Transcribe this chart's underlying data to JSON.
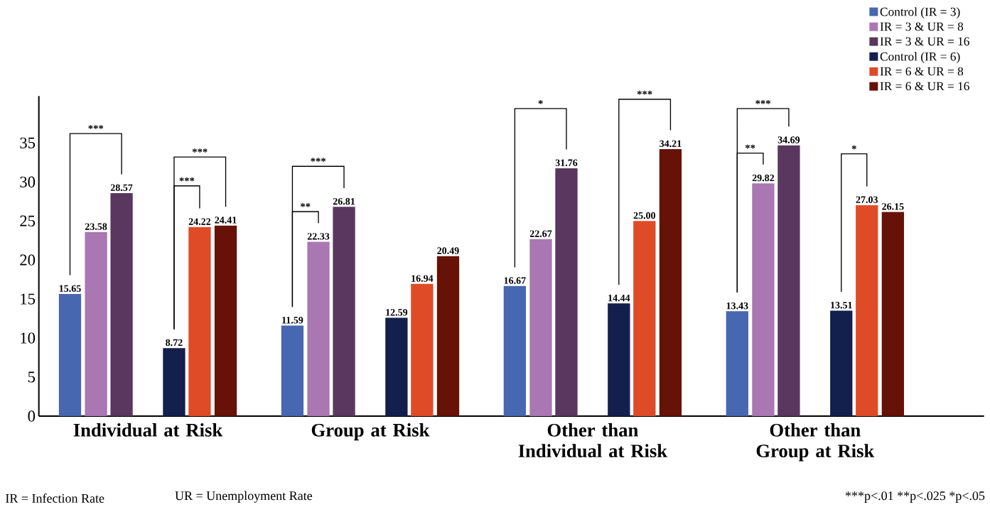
{
  "chart_data": {
    "type": "bar",
    "categories": [
      "Individual at Risk",
      "Group at Risk",
      "Other than Individual at Risk",
      "Other than Group at Risk"
    ],
    "series": [
      {
        "name": "Control (IR = 3)",
        "color": "#4767b0",
        "values": [
          15.65,
          11.59,
          16.67,
          13.43
        ],
        "value_labels": [
          "15.65",
          "11.59",
          "16.67",
          "13.43"
        ]
      },
      {
        "name": "IR = 3 & UR = 8",
        "color": "#a977b2",
        "values": [
          23.58,
          22.33,
          22.67,
          29.82
        ],
        "value_labels": [
          "23.58",
          "22.33",
          "22.67",
          "29.82"
        ]
      },
      {
        "name": "IR = 3 & UR = 16",
        "color": "#5a375e",
        "values": [
          28.57,
          26.81,
          31.76,
          34.69
        ],
        "value_labels": [
          "28.57",
          "26.81",
          "31.76",
          "34.69"
        ]
      },
      {
        "name": "Control (IR = 6)",
        "color": "#131f4d",
        "values": [
          8.72,
          12.59,
          14.44,
          13.51
        ],
        "value_labels": [
          "8.72",
          "12.59",
          "14.44",
          "13.51"
        ]
      },
      {
        "name": "IR = 6 & UR = 8",
        "color": "#e04b27",
        "values": [
          24.22,
          16.94,
          25.0,
          27.03
        ],
        "value_labels": [
          "24.22",
          "16.94",
          "25.00",
          "27.03"
        ]
      },
      {
        "name": "IR = 6 & UR = 16",
        "color": "#661206",
        "values": [
          24.41,
          20.49,
          34.21,
          26.15
        ],
        "value_labels": [
          "24.41",
          "20.49",
          "34.21",
          "26.15"
        ]
      }
    ],
    "ylim": [
      0,
      41
    ],
    "yticks": [
      0,
      5,
      10,
      15,
      20,
      25,
      30,
      35
    ],
    "grid": false,
    "legend": "top right",
    "annotations": [
      "***",
      "***",
      "***",
      "**",
      "***",
      "*",
      "***",
      "**",
      "***",
      "*",
      "IR = Infection Rate",
      "UR = Unemployment Rate",
      "***p<.01 **p<.025 *p<.05"
    ]
  }
}
